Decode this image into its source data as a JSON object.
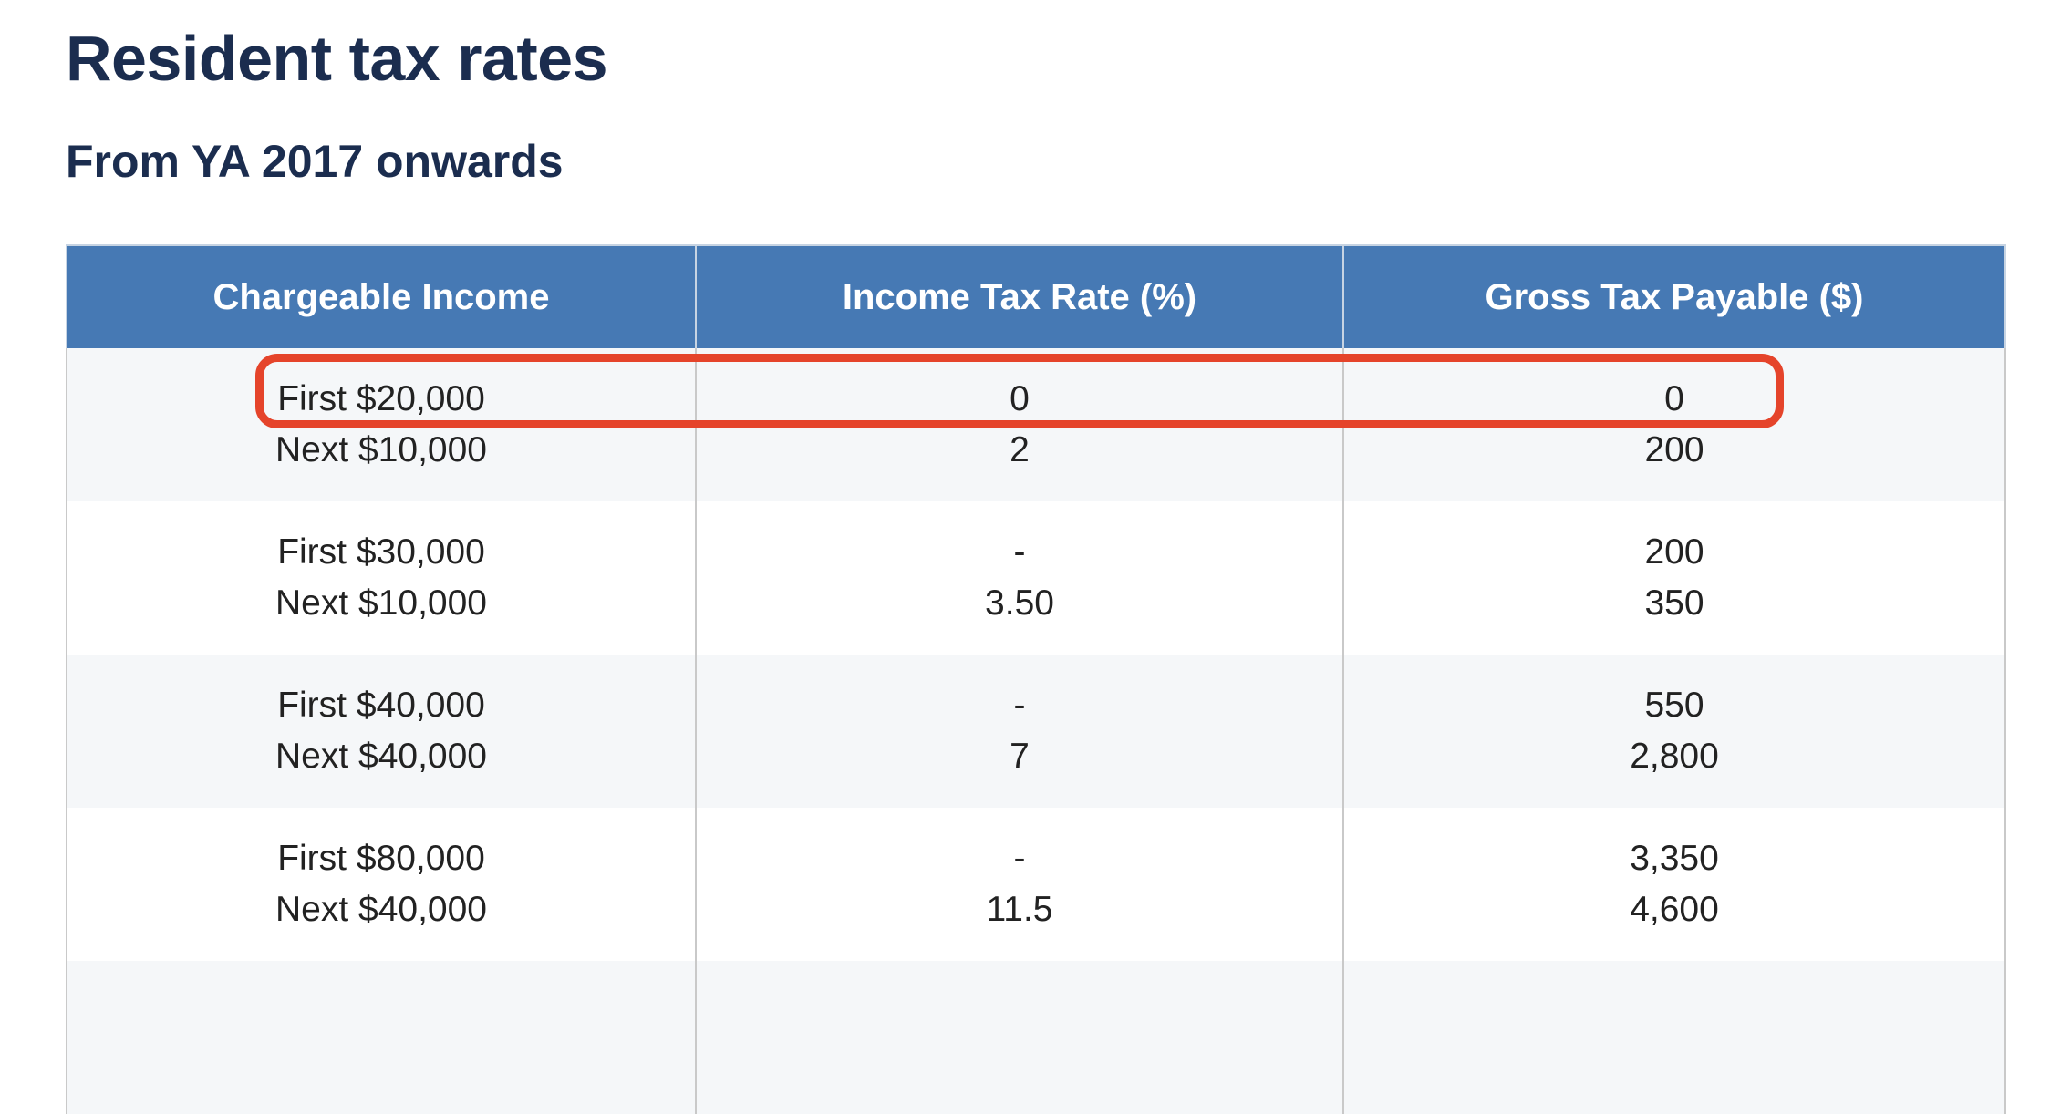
{
  "page": {
    "title": "Resident tax rates",
    "subtitle": "From YA 2017 onwards"
  },
  "table": {
    "headers": [
      "Chargeable Income",
      "Income Tax Rate (%)",
      "Gross Tax Payable ($)"
    ],
    "rows": [
      {
        "income": [
          "First $20,000",
          "Next $10,000"
        ],
        "rate": [
          "0",
          "2"
        ],
        "payable": [
          "0",
          "200"
        ]
      },
      {
        "income": [
          "First $30,000",
          "Next $10,000"
        ],
        "rate": [
          "-",
          "3.50"
        ],
        "payable": [
          "200",
          "350"
        ]
      },
      {
        "income": [
          "First $40,000",
          "Next $40,000"
        ],
        "rate": [
          "-",
          "7"
        ],
        "payable": [
          "550",
          "2,800"
        ]
      },
      {
        "income": [
          "First $80,000",
          "Next $40,000"
        ],
        "rate": [
          "-",
          "11.5"
        ],
        "payable": [
          "3,350",
          "4,600"
        ]
      }
    ]
  },
  "colors": {
    "heading_text": "#1b2d4f",
    "table_header_bg": "#4679b4",
    "table_header_text": "#ffffff",
    "row_alt_bg": "#f5f7f9",
    "highlight_border": "#e5442b"
  },
  "highlight": {
    "row_index": 0,
    "line_index": 0
  }
}
